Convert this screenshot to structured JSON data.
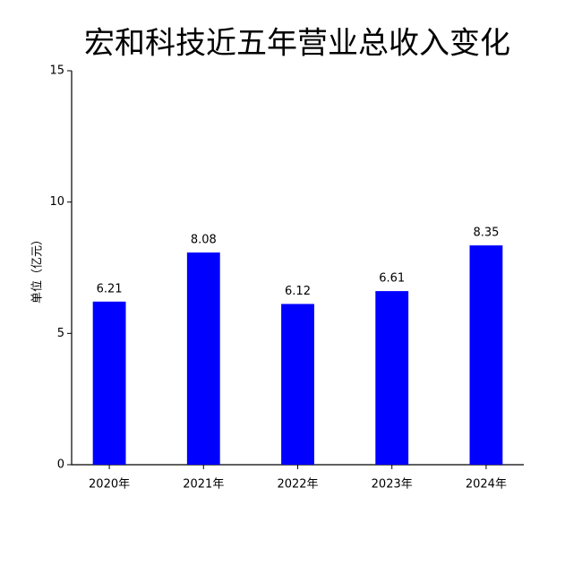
{
  "chart_data": {
    "type": "bar",
    "title": "宏和科技近五年营业总收入变化",
    "y_label": "单位（亿元）",
    "categories": [
      "2020年",
      "2021年",
      "2022年",
      "2023年",
      "2024年"
    ],
    "values": [
      6.21,
      8.08,
      6.12,
      6.61,
      8.35
    ],
    "color": "#0000ff",
    "ylim": [
      0,
      15
    ],
    "yticks": [
      0,
      5,
      10,
      15
    ],
    "grid": false
  }
}
